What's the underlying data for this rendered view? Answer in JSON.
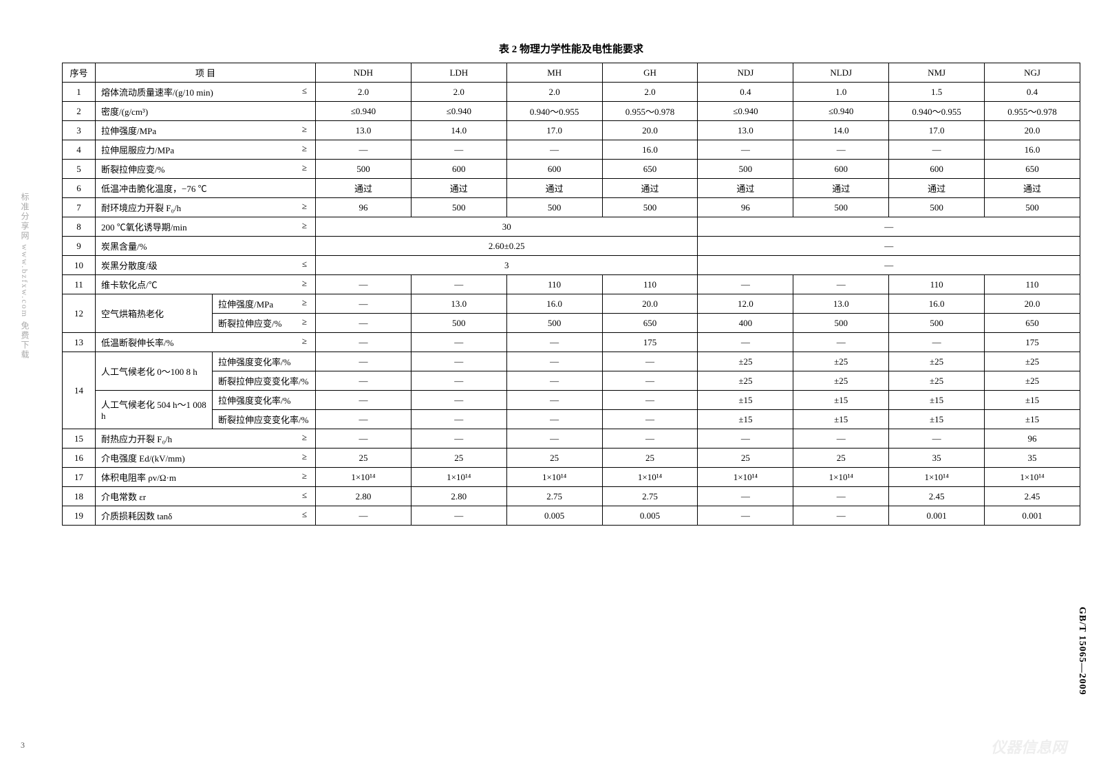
{
  "title": "表 2  物理力学性能及电性能要求",
  "side_left": "标准分享网 www.bzfxw.com 免费下载",
  "side_right": "GB/T 15065—2009",
  "page_num": "3",
  "watermark": "仪器信息网",
  "headers": {
    "num": "序号",
    "item": "项    目",
    "c1": "NDH",
    "c2": "LDH",
    "c3": "MH",
    "c4": "GH",
    "c5": "NDJ",
    "c6": "NLDJ",
    "c7": "NMJ",
    "c8": "NGJ"
  },
  "rows": {
    "r1": {
      "n": "1",
      "item": "熔体流动质量速率/(g/10 min)",
      "sym": "≤",
      "v": [
        "2.0",
        "2.0",
        "2.0",
        "2.0",
        "0.4",
        "1.0",
        "1.5",
        "0.4"
      ]
    },
    "r2": {
      "n": "2",
      "item": "密度/(g/cm³)",
      "sym": "",
      "v": [
        "≤0.940",
        "≤0.940",
        "0.940～0.955",
        "0.955～0.978",
        "≤0.940",
        "≤0.940",
        "0.940～0.955",
        "0.955～0.978"
      ]
    },
    "r3": {
      "n": "3",
      "item": "拉伸强度/MPa",
      "sym": "≥",
      "v": [
        "13.0",
        "14.0",
        "17.0",
        "20.0",
        "13.0",
        "14.0",
        "17.0",
        "20.0"
      ]
    },
    "r4": {
      "n": "4",
      "item": "拉伸屈服应力/MPa",
      "sym": "≥",
      "v": [
        "—",
        "—",
        "—",
        "16.0",
        "—",
        "—",
        "—",
        "16.0"
      ]
    },
    "r5": {
      "n": "5",
      "item": "断裂拉伸应变/%",
      "sym": "≥",
      "v": [
        "500",
        "600",
        "600",
        "650",
        "500",
        "600",
        "600",
        "650"
      ]
    },
    "r6": {
      "n": "6",
      "item": "低温冲击脆化温度，−76 ℃",
      "sym": "",
      "v": [
        "通过",
        "通过",
        "通过",
        "通过",
        "通过",
        "通过",
        "通过",
        "通过"
      ]
    },
    "r7": {
      "n": "7",
      "item": "耐环境应力开裂 F₀/h",
      "sym": "≥",
      "v": [
        "96",
        "500",
        "500",
        "500",
        "96",
        "500",
        "500",
        "500"
      ]
    },
    "r8": {
      "n": "8",
      "item": "200 ℃氧化诱导期/min",
      "sym": "≥",
      "m1": "30",
      "m2": "—"
    },
    "r9": {
      "n": "9",
      "item": "炭黑含量/%",
      "sym": "",
      "m1": "2.60±0.25",
      "m2": "—"
    },
    "r10": {
      "n": "10",
      "item": "炭黑分散度/级",
      "sym": "≤",
      "m1": "3",
      "m2": "—"
    },
    "r11": {
      "n": "11",
      "item": "维卡软化点/℃",
      "sym": "≥",
      "v": [
        "—",
        "—",
        "110",
        "110",
        "—",
        "—",
        "110",
        "110"
      ]
    },
    "r12": {
      "n": "12",
      "item": "空气烘箱热老化",
      "s1": "拉伸强度/MPa",
      "s1sym": "≥",
      "s1v": [
        "—",
        "13.0",
        "16.0",
        "20.0",
        "12.0",
        "13.0",
        "16.0",
        "20.0"
      ],
      "s2": "断裂拉伸应变/%",
      "s2sym": "≥",
      "s2v": [
        "—",
        "500",
        "500",
        "650",
        "400",
        "500",
        "500",
        "650"
      ]
    },
    "r13": {
      "n": "13",
      "item": "低温断裂伸长率/%",
      "sym": "≥",
      "v": [
        "—",
        "—",
        "—",
        "175",
        "—",
        "—",
        "—",
        "175"
      ]
    },
    "r14": {
      "n": "14",
      "g1": "人工气候老化 0～100 8 h",
      "g2": "人工气候老化 504 h～1 008 h",
      "s1": "拉伸强度变化率/%",
      "s1v": [
        "—",
        "—",
        "—",
        "—",
        "±25",
        "±25",
        "±25",
        "±25"
      ],
      "s2": "断裂拉伸应变变化率/%",
      "s2v": [
        "—",
        "—",
        "—",
        "—",
        "±25",
        "±25",
        "±25",
        "±25"
      ],
      "s3": "拉伸强度变化率/%",
      "s3v": [
        "—",
        "—",
        "—",
        "—",
        "±15",
        "±15",
        "±15",
        "±15"
      ],
      "s4": "断裂拉伸应变变化率/%",
      "s4v": [
        "—",
        "—",
        "—",
        "—",
        "±15",
        "±15",
        "±15",
        "±15"
      ]
    },
    "r15": {
      "n": "15",
      "item": "耐热应力开裂 F₀/h",
      "sym": "≥",
      "v": [
        "—",
        "—",
        "—",
        "—",
        "—",
        "—",
        "—",
        "96"
      ]
    },
    "r16": {
      "n": "16",
      "item": "介电强度 Ed/(kV/mm)",
      "sym": "≥",
      "v": [
        "25",
        "25",
        "25",
        "25",
        "25",
        "25",
        "35",
        "35"
      ]
    },
    "r17": {
      "n": "17",
      "item": "体积电阻率 ρv/Ω·m",
      "sym": "≥",
      "v": [
        "1×10¹⁴",
        "1×10¹⁴",
        "1×10¹⁴",
        "1×10¹⁴",
        "1×10¹⁴",
        "1×10¹⁴",
        "1×10¹⁴",
        "1×10¹⁴"
      ]
    },
    "r18": {
      "n": "18",
      "item": "介电常数 εr",
      "sym": "≤",
      "v": [
        "2.80",
        "2.80",
        "2.75",
        "2.75",
        "—",
        "—",
        "2.45",
        "2.45"
      ]
    },
    "r19": {
      "n": "19",
      "item": "介质损耗因数 tanδ",
      "sym": "≤",
      "v": [
        "—",
        "—",
        "0.005",
        "0.005",
        "—",
        "—",
        "0.001",
        "0.001"
      ]
    }
  }
}
